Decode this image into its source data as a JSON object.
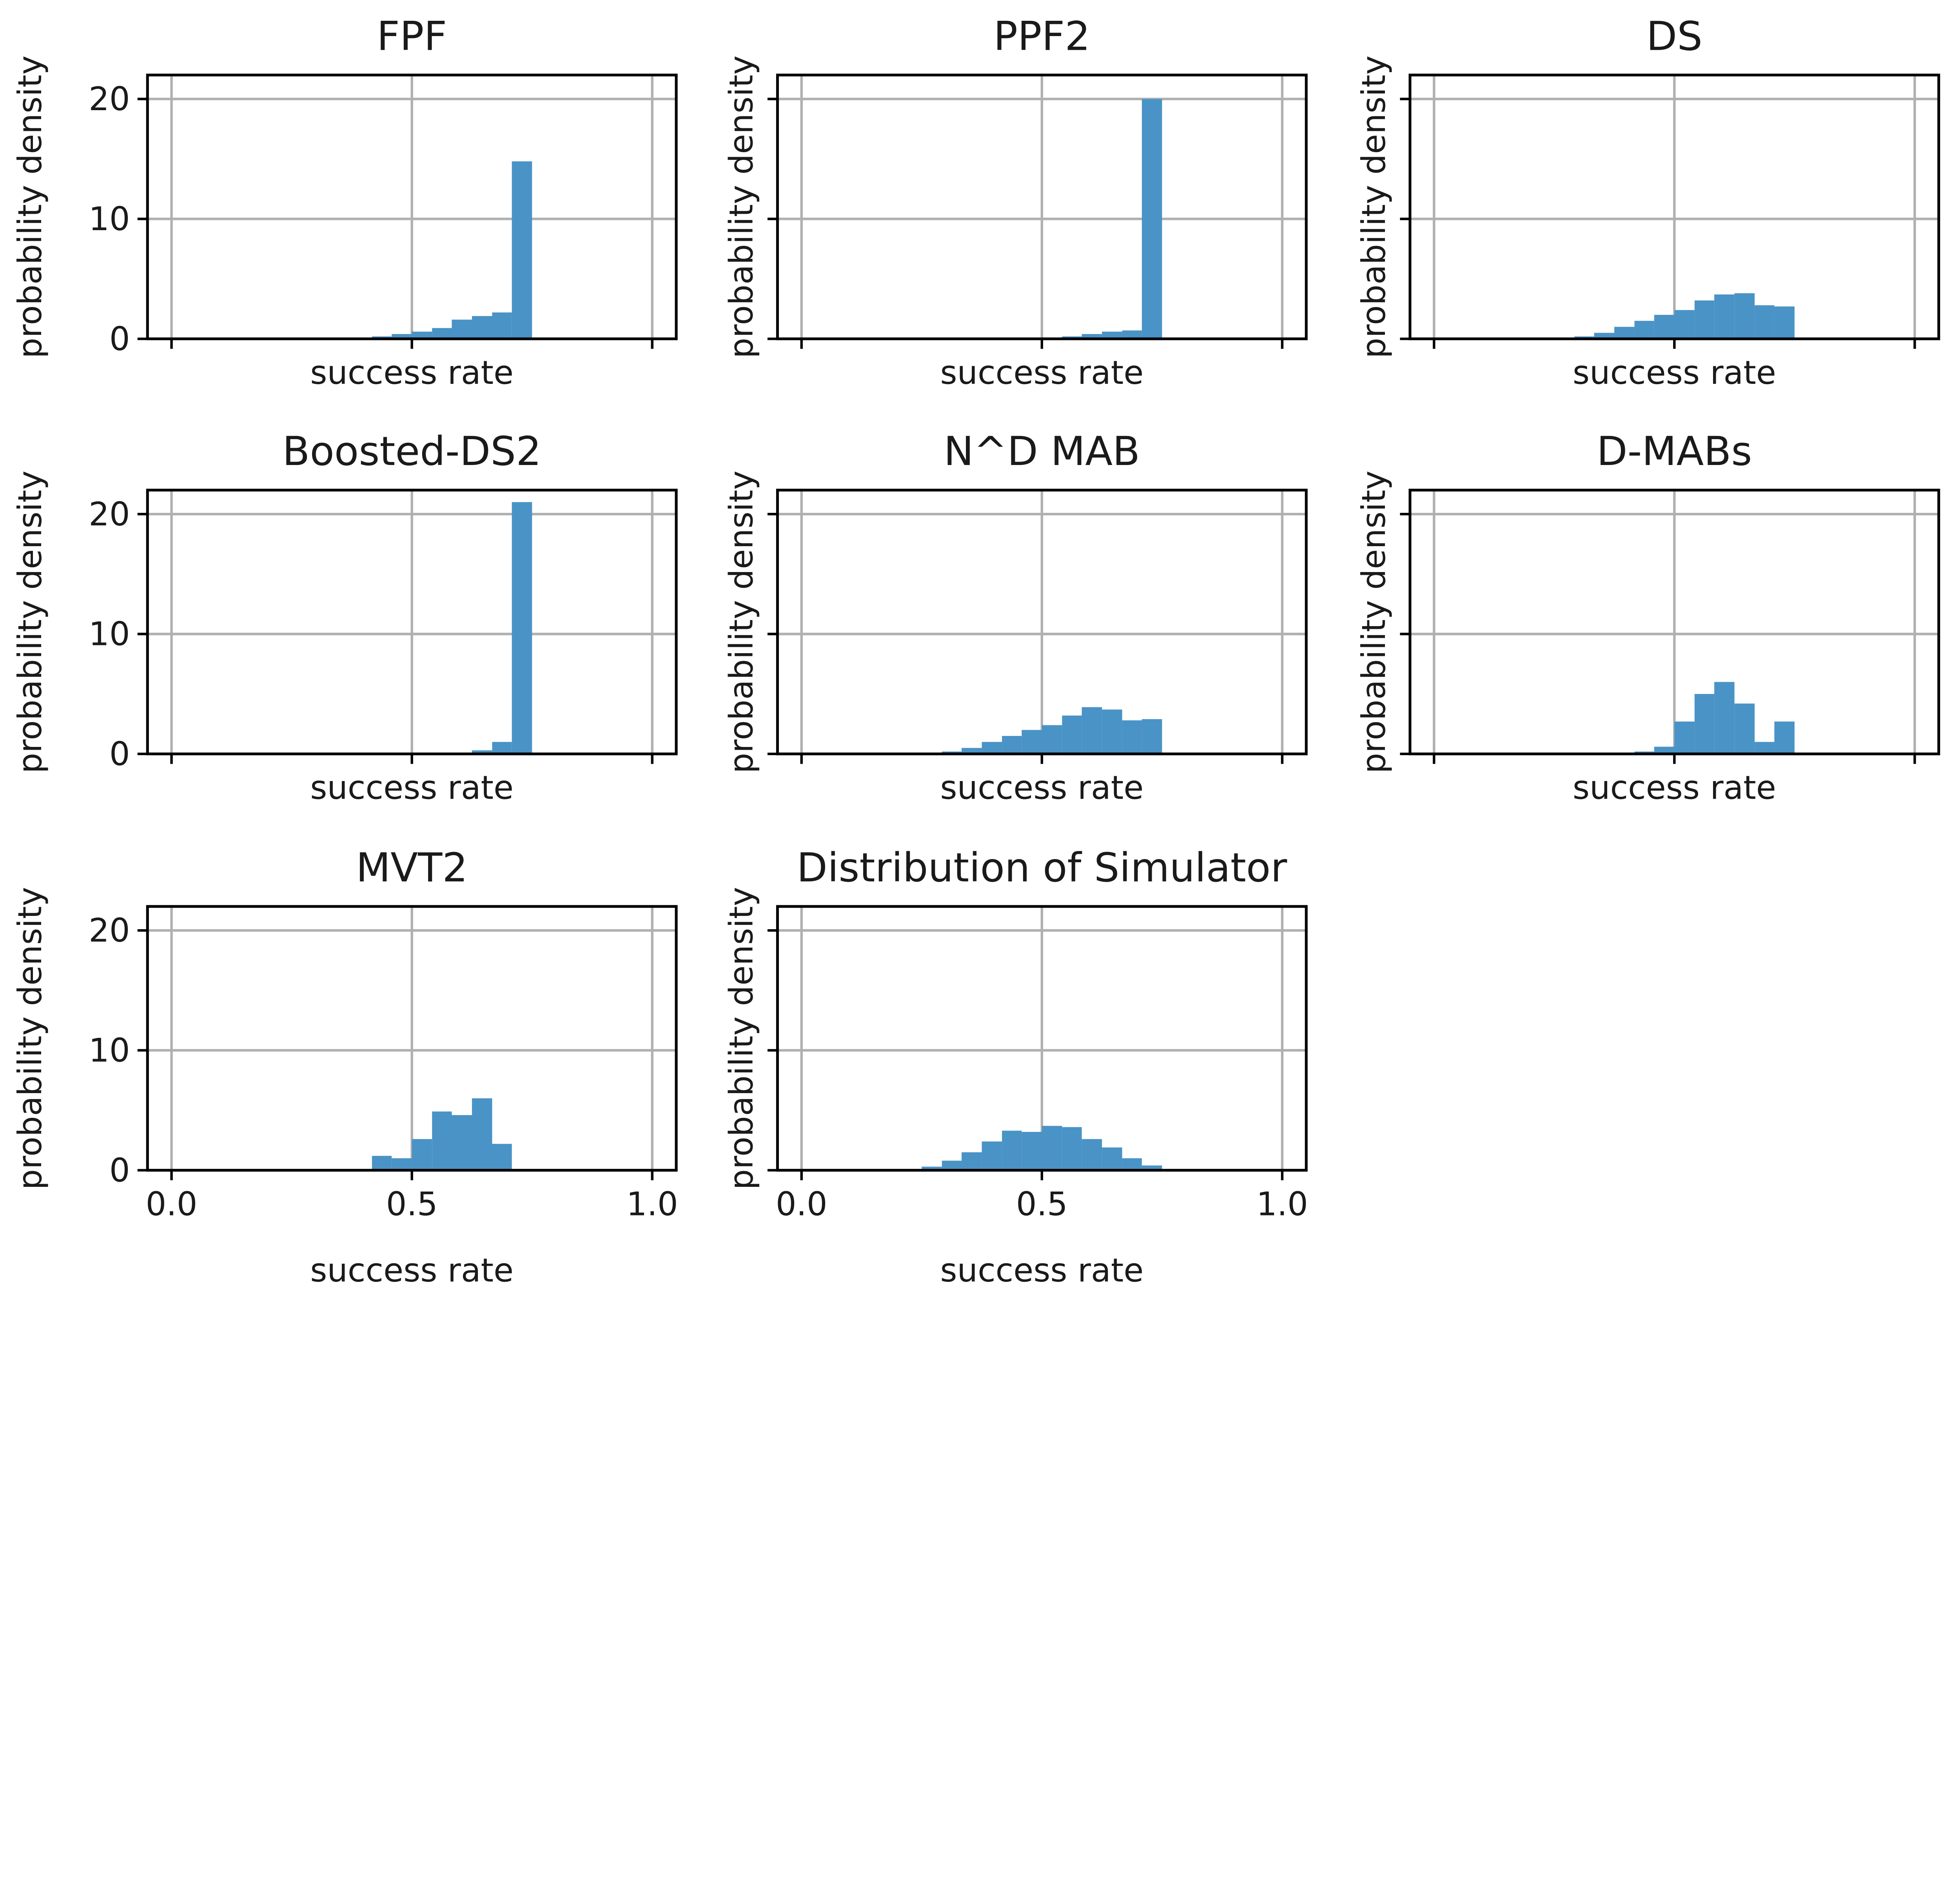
{
  "figure": {
    "shared_xlabel": "success rate",
    "shared_ylabel": "probability density",
    "x_ticks": [
      "0.0",
      "0.5",
      "1.0"
    ],
    "y_ticks": [
      "0",
      "10",
      "20"
    ],
    "colors": {
      "bar": "#4a93c6",
      "grid": "#b0b0b0",
      "axes": "#000000"
    }
  },
  "chart_data": [
    {
      "type": "bar",
      "title": "FPF",
      "xlabel": "success rate",
      "ylabel": "probability density",
      "xlim": [
        -0.05,
        1.05
      ],
      "ylim": [
        0,
        22
      ],
      "grid": true,
      "show_x_ticklabels": false,
      "bins": [
        {
          "x0": 0.375,
          "x1": 0.417,
          "y": 0.05
        },
        {
          "x0": 0.417,
          "x1": 0.458,
          "y": 0.2
        },
        {
          "x0": 0.458,
          "x1": 0.5,
          "y": 0.4
        },
        {
          "x0": 0.5,
          "x1": 0.542,
          "y": 0.6
        },
        {
          "x0": 0.542,
          "x1": 0.583,
          "y": 0.9
        },
        {
          "x0": 0.583,
          "x1": 0.625,
          "y": 1.6
        },
        {
          "x0": 0.625,
          "x1": 0.667,
          "y": 1.9
        },
        {
          "x0": 0.667,
          "x1": 0.708,
          "y": 2.2
        },
        {
          "x0": 0.708,
          "x1": 0.75,
          "y": 14.8
        }
      ]
    },
    {
      "type": "bar",
      "title": "PPF2",
      "xlabel": "success rate",
      "ylabel": "probability density",
      "xlim": [
        -0.05,
        1.05
      ],
      "ylim": [
        0,
        22
      ],
      "grid": true,
      "show_x_ticklabels": false,
      "bins": [
        {
          "x0": 0.5,
          "x1": 0.542,
          "y": 0.05
        },
        {
          "x0": 0.542,
          "x1": 0.583,
          "y": 0.2
        },
        {
          "x0": 0.583,
          "x1": 0.625,
          "y": 0.4
        },
        {
          "x0": 0.625,
          "x1": 0.667,
          "y": 0.6
        },
        {
          "x0": 0.667,
          "x1": 0.708,
          "y": 0.7
        },
        {
          "x0": 0.708,
          "x1": 0.75,
          "y": 20.0
        }
      ]
    },
    {
      "type": "bar",
      "title": "DS",
      "xlabel": "success rate",
      "ylabel": "probability density",
      "xlim": [
        -0.05,
        1.05
      ],
      "ylim": [
        0,
        22
      ],
      "grid": true,
      "show_x_ticklabels": false,
      "bins": [
        {
          "x0": 0.292,
          "x1": 0.333,
          "y": 0.2
        },
        {
          "x0": 0.333,
          "x1": 0.375,
          "y": 0.5
        },
        {
          "x0": 0.375,
          "x1": 0.417,
          "y": 1.0
        },
        {
          "x0": 0.417,
          "x1": 0.458,
          "y": 1.5
        },
        {
          "x0": 0.458,
          "x1": 0.5,
          "y": 2.0
        },
        {
          "x0": 0.5,
          "x1": 0.542,
          "y": 2.4
        },
        {
          "x0": 0.542,
          "x1": 0.583,
          "y": 3.2
        },
        {
          "x0": 0.583,
          "x1": 0.625,
          "y": 3.7
        },
        {
          "x0": 0.625,
          "x1": 0.667,
          "y": 3.8
        },
        {
          "x0": 0.667,
          "x1": 0.708,
          "y": 2.8
        },
        {
          "x0": 0.708,
          "x1": 0.75,
          "y": 2.7
        }
      ]
    },
    {
      "type": "bar",
      "title": "Boosted-DS2",
      "xlabel": "success rate",
      "ylabel": "probability density",
      "xlim": [
        -0.05,
        1.05
      ],
      "ylim": [
        0,
        22
      ],
      "grid": true,
      "show_x_ticklabels": false,
      "bins": [
        {
          "x0": 0.583,
          "x1": 0.625,
          "y": 0.1
        },
        {
          "x0": 0.625,
          "x1": 0.667,
          "y": 0.3
        },
        {
          "x0": 0.667,
          "x1": 0.708,
          "y": 1.0
        },
        {
          "x0": 0.708,
          "x1": 0.75,
          "y": 21.0
        }
      ]
    },
    {
      "type": "bar",
      "title": "N^D MAB",
      "xlabel": "success rate",
      "ylabel": "probability density",
      "xlim": [
        -0.05,
        1.05
      ],
      "ylim": [
        0,
        22
      ],
      "grid": true,
      "show_x_ticklabels": false,
      "bins": [
        {
          "x0": 0.292,
          "x1": 0.333,
          "y": 0.2
        },
        {
          "x0": 0.333,
          "x1": 0.375,
          "y": 0.5
        },
        {
          "x0": 0.375,
          "x1": 0.417,
          "y": 1.0
        },
        {
          "x0": 0.417,
          "x1": 0.458,
          "y": 1.5
        },
        {
          "x0": 0.458,
          "x1": 0.5,
          "y": 2.0
        },
        {
          "x0": 0.5,
          "x1": 0.542,
          "y": 2.4
        },
        {
          "x0": 0.542,
          "x1": 0.583,
          "y": 3.2
        },
        {
          "x0": 0.583,
          "x1": 0.625,
          "y": 3.9
        },
        {
          "x0": 0.625,
          "x1": 0.667,
          "y": 3.7
        },
        {
          "x0": 0.667,
          "x1": 0.708,
          "y": 2.8
        },
        {
          "x0": 0.708,
          "x1": 0.75,
          "y": 2.9
        }
      ]
    },
    {
      "type": "bar",
      "title": "D-MABs",
      "xlabel": "success rate",
      "ylabel": "probability density",
      "xlim": [
        -0.05,
        1.05
      ],
      "ylim": [
        0,
        22
      ],
      "grid": true,
      "show_x_ticklabels": false,
      "bins": [
        {
          "x0": 0.417,
          "x1": 0.458,
          "y": 0.2
        },
        {
          "x0": 0.458,
          "x1": 0.5,
          "y": 0.6
        },
        {
          "x0": 0.5,
          "x1": 0.542,
          "y": 2.7
        },
        {
          "x0": 0.542,
          "x1": 0.583,
          "y": 5.0
        },
        {
          "x0": 0.583,
          "x1": 0.625,
          "y": 6.0
        },
        {
          "x0": 0.625,
          "x1": 0.667,
          "y": 4.2
        },
        {
          "x0": 0.667,
          "x1": 0.708,
          "y": 1.0
        },
        {
          "x0": 0.708,
          "x1": 0.75,
          "y": 2.7
        }
      ]
    },
    {
      "type": "bar",
      "title": "MVT2",
      "xlabel": "success rate",
      "ylabel": "probability density",
      "xlim": [
        -0.05,
        1.05
      ],
      "ylim": [
        0,
        22
      ],
      "grid": true,
      "show_x_ticklabels": true,
      "bins": [
        {
          "x0": 0.375,
          "x1": 0.417,
          "y": 0.1
        },
        {
          "x0": 0.417,
          "x1": 0.458,
          "y": 1.2
        },
        {
          "x0": 0.458,
          "x1": 0.5,
          "y": 1.0
        },
        {
          "x0": 0.5,
          "x1": 0.542,
          "y": 2.6
        },
        {
          "x0": 0.542,
          "x1": 0.583,
          "y": 4.9
        },
        {
          "x0": 0.583,
          "x1": 0.625,
          "y": 4.6
        },
        {
          "x0": 0.625,
          "x1": 0.667,
          "y": 6.0
        },
        {
          "x0": 0.667,
          "x1": 0.708,
          "y": 2.2
        }
      ]
    },
    {
      "type": "bar",
      "title": "Distribution of Simulator",
      "xlabel": "success rate",
      "ylabel": "probability density",
      "xlim": [
        -0.05,
        1.05
      ],
      "ylim": [
        0,
        22
      ],
      "grid": true,
      "show_x_ticklabels": true,
      "bins": [
        {
          "x0": 0.25,
          "x1": 0.292,
          "y": 0.3
        },
        {
          "x0": 0.292,
          "x1": 0.333,
          "y": 0.8
        },
        {
          "x0": 0.333,
          "x1": 0.375,
          "y": 1.5
        },
        {
          "x0": 0.375,
          "x1": 0.417,
          "y": 2.4
        },
        {
          "x0": 0.417,
          "x1": 0.458,
          "y": 3.3
        },
        {
          "x0": 0.458,
          "x1": 0.5,
          "y": 3.2
        },
        {
          "x0": 0.5,
          "x1": 0.542,
          "y": 3.7
        },
        {
          "x0": 0.542,
          "x1": 0.583,
          "y": 3.6
        },
        {
          "x0": 0.583,
          "x1": 0.625,
          "y": 2.6
        },
        {
          "x0": 0.625,
          "x1": 0.667,
          "y": 1.9
        },
        {
          "x0": 0.667,
          "x1": 0.708,
          "y": 1.0
        },
        {
          "x0": 0.708,
          "x1": 0.75,
          "y": 0.4
        }
      ]
    }
  ]
}
